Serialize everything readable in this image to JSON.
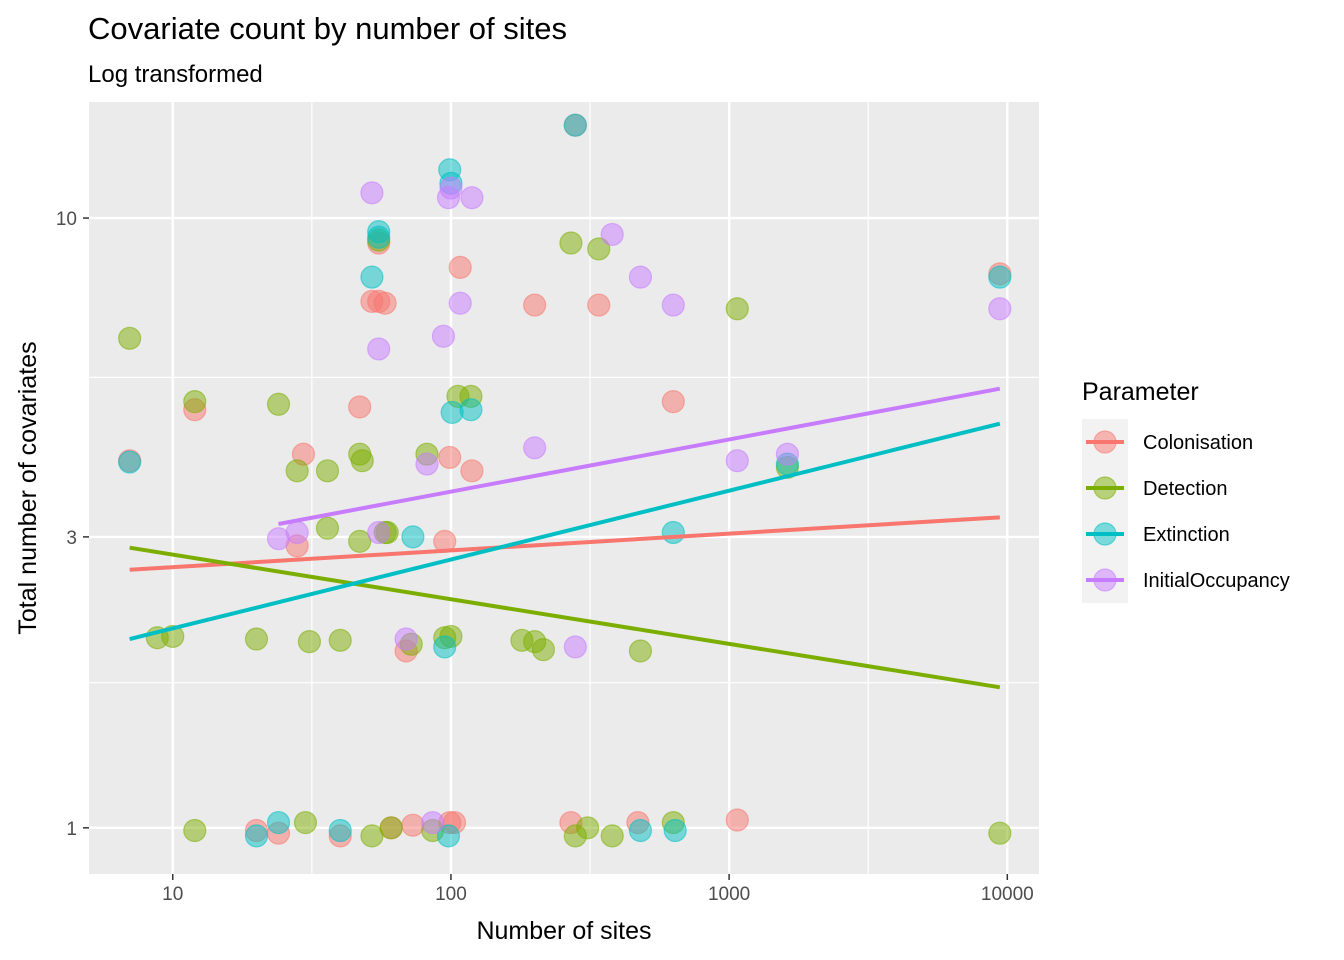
{
  "chart_data": {
    "type": "scatter",
    "title": "Covariate count by number of sites",
    "subtitle": "Log transformed",
    "xlabel": "Number of sites",
    "ylabel": "Total number of covariates",
    "x_scale": "log10",
    "y_scale": "log10",
    "xlim": [
      5,
      13000
    ],
    "ylim": [
      0.84,
      15.5
    ],
    "x_ticks": [
      10,
      100,
      1000,
      10000
    ],
    "x_tick_labels": [
      "10",
      "100",
      "1000",
      "10000"
    ],
    "y_ticks": [
      1,
      3,
      10
    ],
    "y_tick_labels": [
      "1",
      "3",
      "10"
    ],
    "x_minor_grid": [
      31.62,
      316.2,
      3162
    ],
    "y_minor_grid": [
      1.73,
      5.48
    ],
    "grid": true,
    "legend": {
      "title": "Parameter",
      "position": "right"
    },
    "series": [
      {
        "name": "Colonisation",
        "color": "#F8766D",
        "trend": {
          "x": [
            7,
            9400
          ],
          "y": [
            2.65,
            3.23
          ]
        },
        "points": [
          [
            7,
            4.0
          ],
          [
            12,
            4.85
          ],
          [
            20,
            0.99
          ],
          [
            24,
            0.98
          ],
          [
            28,
            2.9
          ],
          [
            29.5,
            4.1
          ],
          [
            40,
            0.97
          ],
          [
            47,
            4.9
          ],
          [
            52,
            7.3
          ],
          [
            55,
            7.3
          ],
          [
            55,
            9.1
          ],
          [
            58,
            7.25
          ],
          [
            61,
            1.0
          ],
          [
            69,
            1.95
          ],
          [
            73,
            1.01
          ],
          [
            95,
            2.95
          ],
          [
            99,
            1.02
          ],
          [
            99,
            4.05
          ],
          [
            103,
            1.02
          ],
          [
            108,
            8.3
          ],
          [
            119,
            3.85
          ],
          [
            200,
            7.2
          ],
          [
            270,
            1.02
          ],
          [
            280,
            14.2
          ],
          [
            340,
            7.2
          ],
          [
            470,
            1.02
          ],
          [
            630,
            5.0
          ],
          [
            1070,
            1.03
          ],
          [
            9400,
            8.1
          ]
        ]
      },
      {
        "name": "Detection",
        "color": "#7CAE00",
        "trend": {
          "x": [
            7,
            9400
          ],
          "y": [
            2.88,
            1.7
          ]
        },
        "points": [
          [
            7,
            6.35
          ],
          [
            8.8,
            2.05
          ],
          [
            10,
            2.06
          ],
          [
            12,
            0.99
          ],
          [
            12,
            5.0
          ],
          [
            20,
            2.04
          ],
          [
            24,
            4.95
          ],
          [
            28,
            3.85
          ],
          [
            30,
            1.02
          ],
          [
            31,
            2.02
          ],
          [
            36,
            3.1
          ],
          [
            36,
            3.85
          ],
          [
            40,
            2.03
          ],
          [
            47,
            2.95
          ],
          [
            47,
            4.1
          ],
          [
            48,
            4.0
          ],
          [
            52,
            0.97
          ],
          [
            55,
            9.2
          ],
          [
            58,
            3.05
          ],
          [
            59,
            3.05
          ],
          [
            61,
            1.0
          ],
          [
            72,
            2.0
          ],
          [
            82,
            4.1
          ],
          [
            86,
            0.99
          ],
          [
            95,
            2.05
          ],
          [
            100,
            2.06
          ],
          [
            106,
            5.1
          ],
          [
            118,
            5.1
          ],
          [
            180,
            2.03
          ],
          [
            200,
            2.02
          ],
          [
            215,
            1.96
          ],
          [
            270,
            9.1
          ],
          [
            280,
            0.97
          ],
          [
            310,
            1.0
          ],
          [
            340,
            8.9
          ],
          [
            380,
            0.97
          ],
          [
            480,
            1.95
          ],
          [
            630,
            1.02
          ],
          [
            1070,
            7.1
          ],
          [
            1620,
            3.9
          ],
          [
            9400,
            0.98
          ]
        ]
      },
      {
        "name": "Extinction",
        "color": "#00BFC4",
        "trend": {
          "x": [
            7,
            9400
          ],
          "y": [
            2.04,
            4.6
          ]
        },
        "points": [
          [
            7,
            3.98
          ],
          [
            20,
            0.97
          ],
          [
            24,
            1.02
          ],
          [
            40,
            0.99
          ],
          [
            52,
            8.0
          ],
          [
            55,
            9.5
          ],
          [
            55,
            9.3
          ],
          [
            73,
            3.0
          ],
          [
            95,
            1.98
          ],
          [
            98,
            0.97
          ],
          [
            99,
            12.0
          ],
          [
            100,
            11.4
          ],
          [
            101,
            4.8
          ],
          [
            118,
            4.85
          ],
          [
            280,
            14.2
          ],
          [
            480,
            0.99
          ],
          [
            630,
            3.05
          ],
          [
            640,
            0.99
          ],
          [
            1620,
            3.95
          ],
          [
            9400,
            8.0
          ]
        ]
      },
      {
        "name": "InitialOccupancy",
        "color": "#C77CFF",
        "trend": {
          "x": [
            24,
            9400
          ],
          "y": [
            3.15,
            5.25
          ]
        },
        "points": [
          [
            24,
            2.98
          ],
          [
            28,
            3.05
          ],
          [
            52,
            11.0
          ],
          [
            55,
            3.05
          ],
          [
            55,
            6.1
          ],
          [
            69,
            2.04
          ],
          [
            82,
            3.95
          ],
          [
            86,
            1.02
          ],
          [
            94,
            6.4
          ],
          [
            98,
            10.8
          ],
          [
            100,
            11.2
          ],
          [
            108,
            7.25
          ],
          [
            119,
            10.8
          ],
          [
            200,
            4.2
          ],
          [
            280,
            1.98
          ],
          [
            380,
            9.4
          ],
          [
            480,
            8.0
          ],
          [
            630,
            7.2
          ],
          [
            1070,
            4.0
          ],
          [
            1620,
            4.1
          ],
          [
            9400,
            7.1
          ]
        ]
      }
    ]
  }
}
